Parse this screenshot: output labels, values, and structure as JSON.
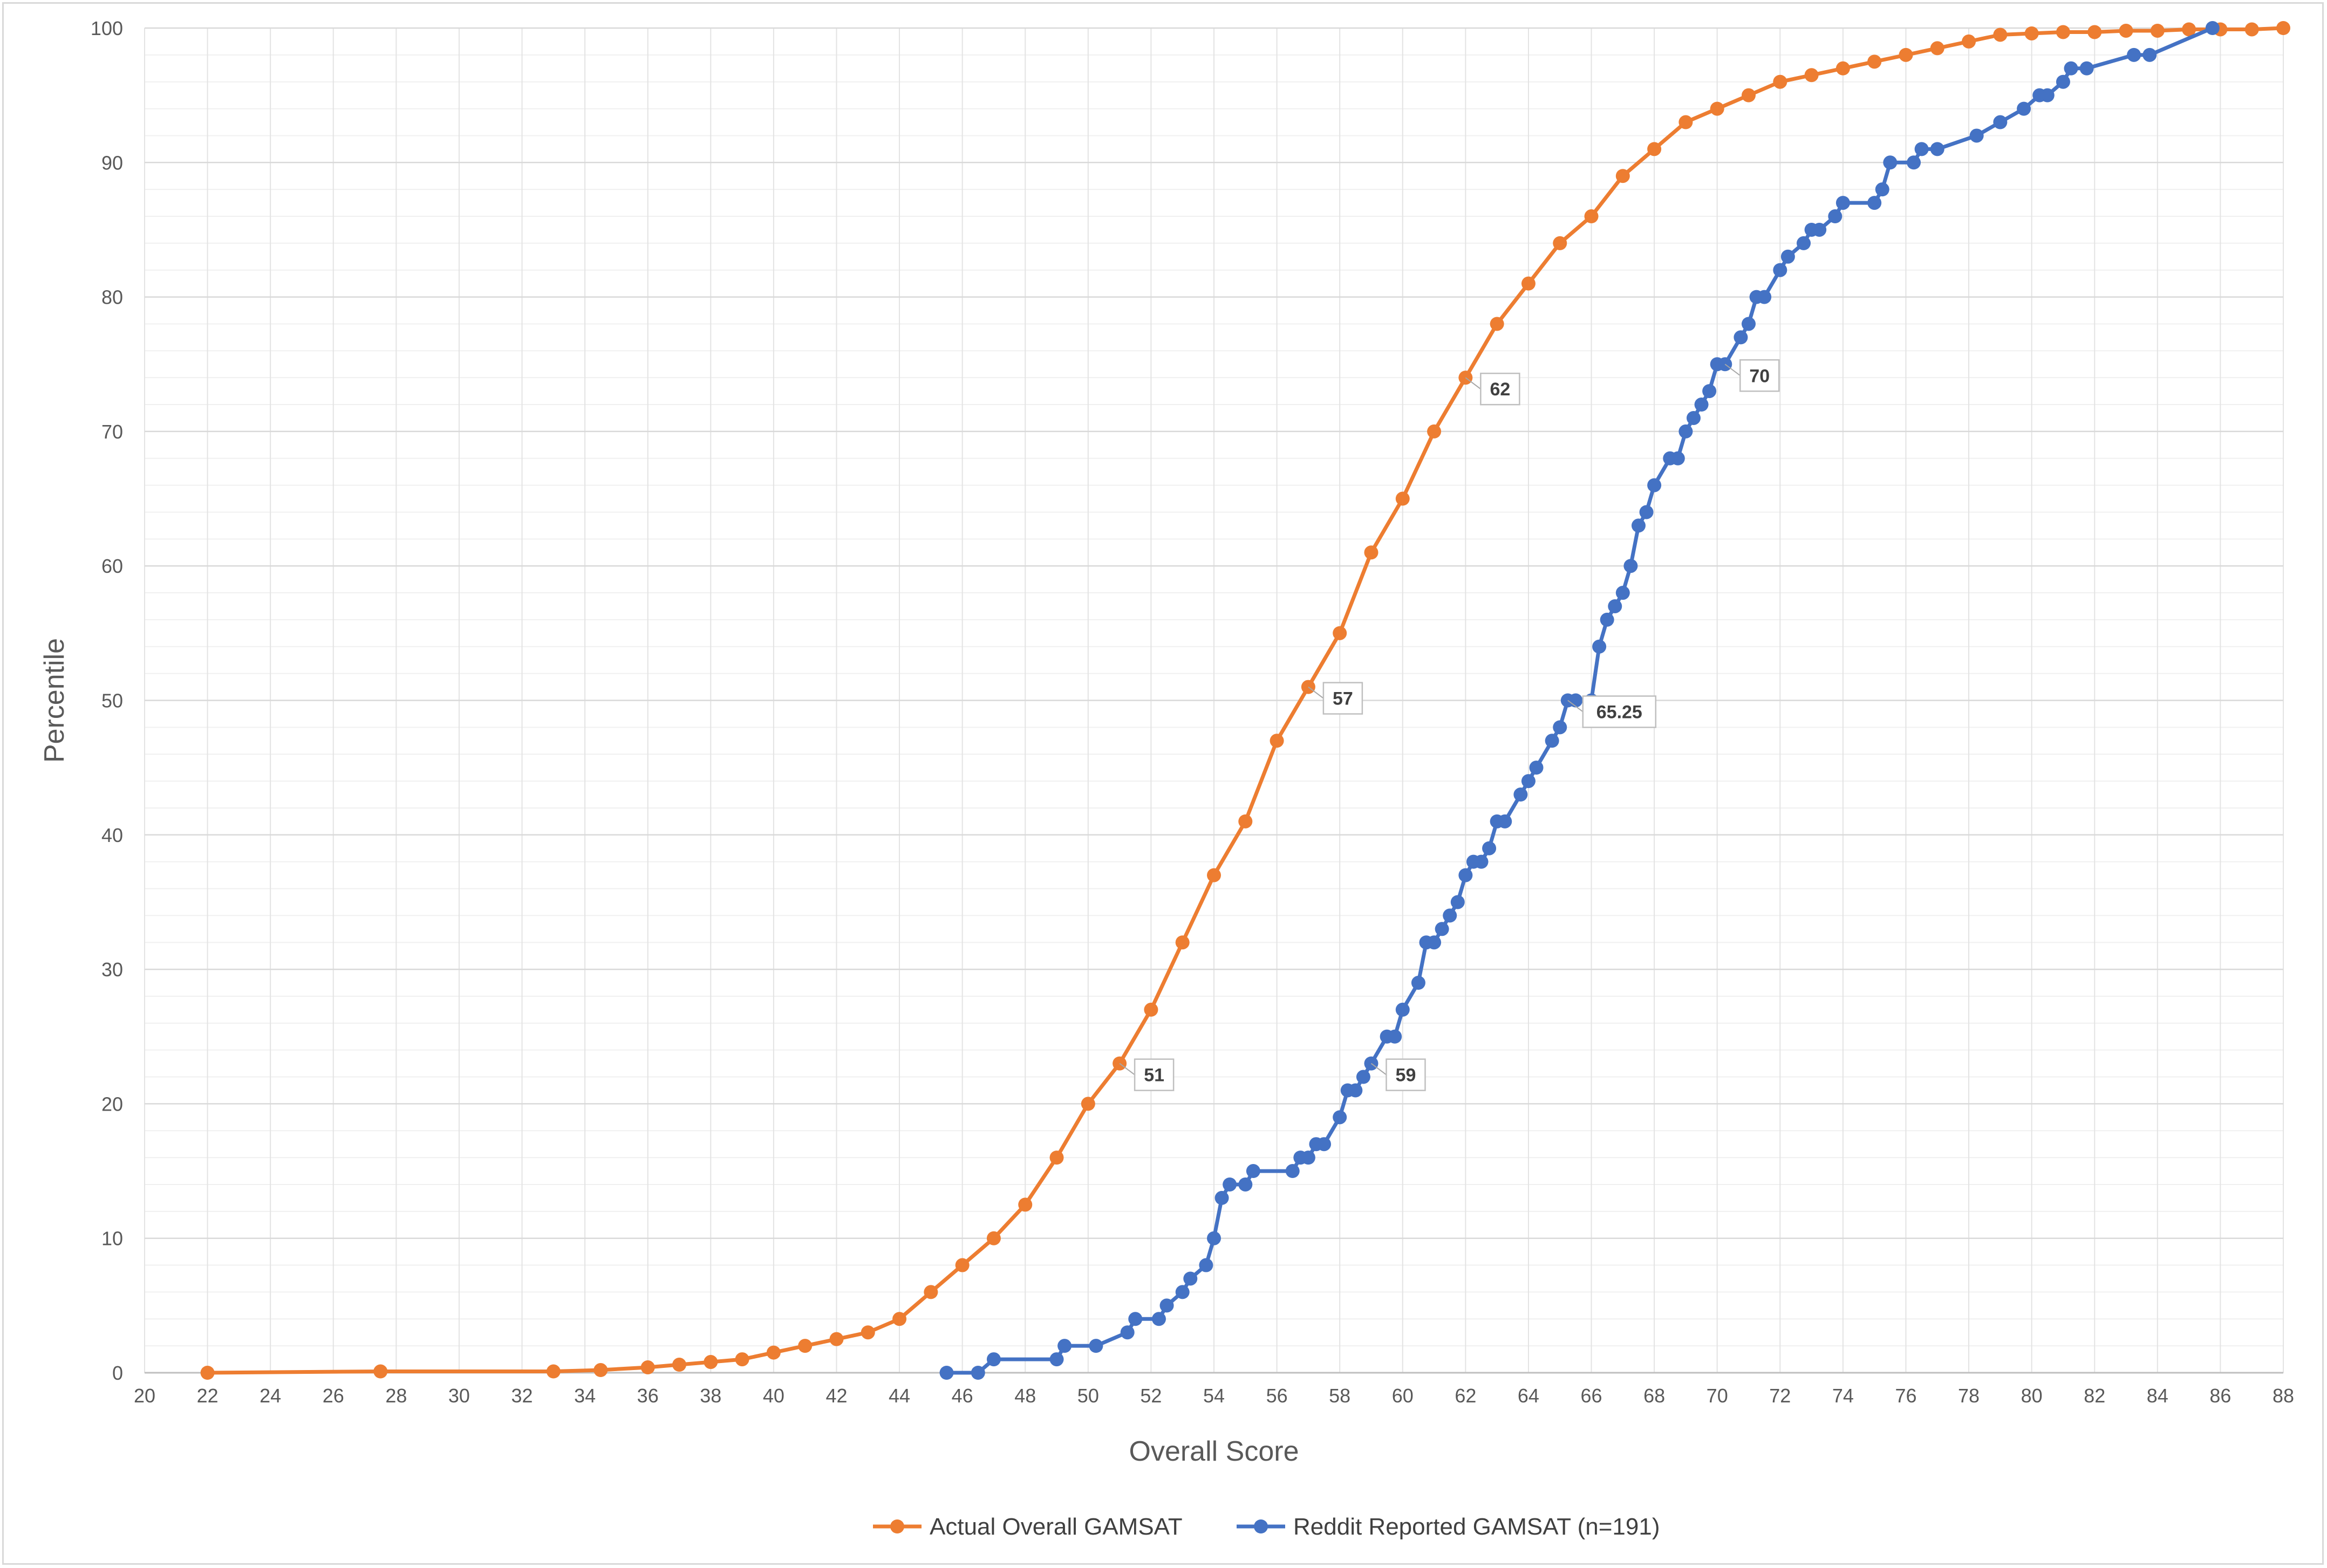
{
  "chart_data": {
    "type": "line",
    "title": "",
    "xlabel": "Overall Score",
    "ylabel": "Percentile",
    "xlim": [
      20,
      88
    ],
    "ylim": [
      0,
      100
    ],
    "x_ticks": [
      "20",
      "22",
      "24",
      "26",
      "28",
      "30",
      "32",
      "34",
      "36",
      "38",
      "40",
      "42",
      "44",
      "46",
      "48",
      "50",
      "52",
      "54",
      "56",
      "58",
      "60",
      "62",
      "64",
      "66",
      "68",
      "70",
      "72",
      "74",
      "76",
      "78",
      "80",
      "82",
      "84",
      "86",
      "88"
    ],
    "y_ticks": [
      "0",
      "10",
      "20",
      "30",
      "40",
      "50",
      "60",
      "70",
      "80",
      "90",
      "100"
    ],
    "grid": true,
    "legend_position": "bottom",
    "series": [
      {
        "name": "Actual Overall GAMSAT",
        "color": "#ED7D31",
        "points": [
          [
            22,
            0
          ],
          [
            27.5,
            0.1
          ],
          [
            33,
            0.1
          ],
          [
            34.5,
            0.2
          ],
          [
            36,
            0.4
          ],
          [
            37,
            0.6
          ],
          [
            38,
            0.8
          ],
          [
            39,
            1
          ],
          [
            40,
            1.5
          ],
          [
            41,
            2
          ],
          [
            42,
            2.5
          ],
          [
            43,
            3
          ],
          [
            44,
            4
          ],
          [
            45,
            6
          ],
          [
            46,
            8
          ],
          [
            47,
            10
          ],
          [
            48,
            12.5
          ],
          [
            49,
            16
          ],
          [
            50,
            20
          ],
          [
            51,
            23
          ],
          [
            52,
            27
          ],
          [
            53,
            32
          ],
          [
            54,
            37
          ],
          [
            55,
            41
          ],
          [
            56,
            47
          ],
          [
            57,
            51
          ],
          [
            58,
            55
          ],
          [
            59,
            61
          ],
          [
            60,
            65
          ],
          [
            61,
            70
          ],
          [
            62,
            74
          ],
          [
            63,
            78
          ],
          [
            64,
            81
          ],
          [
            65,
            84
          ],
          [
            66,
            86
          ],
          [
            67,
            89
          ],
          [
            68,
            91
          ],
          [
            69,
            93
          ],
          [
            70,
            94
          ],
          [
            71,
            95
          ],
          [
            72,
            96
          ],
          [
            73,
            96.5
          ],
          [
            74,
            97
          ],
          [
            75,
            97.5
          ],
          [
            76,
            98
          ],
          [
            77,
            98.5
          ],
          [
            78,
            99
          ],
          [
            79,
            99.5
          ],
          [
            80,
            99.6
          ],
          [
            81,
            99.7
          ],
          [
            82,
            99.7
          ],
          [
            83,
            99.8
          ],
          [
            84,
            99.8
          ],
          [
            85,
            99.9
          ],
          [
            86,
            99.9
          ],
          [
            87,
            99.9
          ],
          [
            88,
            100
          ]
        ],
        "callouts": [
          {
            "x": 51,
            "y": 23,
            "label": "51"
          },
          {
            "x": 57,
            "y": 51,
            "label": "57"
          },
          {
            "x": 62,
            "y": 74,
            "label": "62"
          }
        ]
      },
      {
        "name": "Reddit Reported GAMSAT (n=191)",
        "color": "#4472C4",
        "points": [
          [
            45.5,
            0
          ],
          [
            46.5,
            0
          ],
          [
            47,
            1
          ],
          [
            49,
            1
          ],
          [
            49.25,
            2
          ],
          [
            50.25,
            2
          ],
          [
            51.25,
            3
          ],
          [
            51.5,
            4
          ],
          [
            52.25,
            4
          ],
          [
            52.5,
            5
          ],
          [
            53,
            6
          ],
          [
            53.25,
            7
          ],
          [
            53.75,
            8
          ],
          [
            54,
            10
          ],
          [
            54.25,
            13
          ],
          [
            54.5,
            14
          ],
          [
            55,
            14
          ],
          [
            55.25,
            15
          ],
          [
            56.5,
            15
          ],
          [
            56.75,
            16
          ],
          [
            57,
            16
          ],
          [
            57.25,
            17
          ],
          [
            57.5,
            17
          ],
          [
            58,
            19
          ],
          [
            58.25,
            21
          ],
          [
            58.5,
            21
          ],
          [
            58.75,
            22
          ],
          [
            59,
            23
          ],
          [
            59.5,
            25
          ],
          [
            59.75,
            25
          ],
          [
            60,
            27
          ],
          [
            60.5,
            29
          ],
          [
            60.75,
            32
          ],
          [
            61,
            32
          ],
          [
            61.25,
            33
          ],
          [
            61.5,
            34
          ],
          [
            61.75,
            35
          ],
          [
            62,
            37
          ],
          [
            62.25,
            38
          ],
          [
            62.5,
            38
          ],
          [
            62.75,
            39
          ],
          [
            63,
            41
          ],
          [
            63.25,
            41
          ],
          [
            63.75,
            43
          ],
          [
            64,
            44
          ],
          [
            64.25,
            45
          ],
          [
            64.75,
            47
          ],
          [
            65,
            48
          ],
          [
            65.25,
            50
          ],
          [
            65.5,
            50
          ],
          [
            66,
            50
          ],
          [
            66.25,
            54
          ],
          [
            66.5,
            56
          ],
          [
            66.75,
            57
          ],
          [
            67,
            58
          ],
          [
            67.25,
            60
          ],
          [
            67.5,
            63
          ],
          [
            67.75,
            64
          ],
          [
            68,
            66
          ],
          [
            68.5,
            68
          ],
          [
            68.75,
            68
          ],
          [
            69,
            70
          ],
          [
            69.25,
            71
          ],
          [
            69.5,
            72
          ],
          [
            69.75,
            73
          ],
          [
            70,
            75
          ],
          [
            70.25,
            75
          ],
          [
            70.75,
            77
          ],
          [
            71,
            78
          ],
          [
            71.25,
            80
          ],
          [
            71.5,
            80
          ],
          [
            72,
            82
          ],
          [
            72.25,
            83
          ],
          [
            72.75,
            84
          ],
          [
            73,
            85
          ],
          [
            73.25,
            85
          ],
          [
            73.75,
            86
          ],
          [
            74,
            87
          ],
          [
            75,
            87
          ],
          [
            75.25,
            88
          ],
          [
            75.5,
            90
          ],
          [
            76.25,
            90
          ],
          [
            76.5,
            91
          ],
          [
            77,
            91
          ],
          [
            78.25,
            92
          ],
          [
            79,
            93
          ],
          [
            79.75,
            94
          ],
          [
            80.25,
            95
          ],
          [
            80.5,
            95
          ],
          [
            81,
            96
          ],
          [
            81.25,
            97
          ],
          [
            81.75,
            97
          ],
          [
            83.25,
            98
          ],
          [
            83.75,
            98
          ],
          [
            85.75,
            100
          ]
        ],
        "callouts": [
          {
            "x": 59,
            "y": 23,
            "label": "59"
          },
          {
            "x": 65.25,
            "y": 50,
            "label": "65.25"
          },
          {
            "x": 70.25,
            "y": 75,
            "label": "70"
          }
        ]
      }
    ]
  }
}
